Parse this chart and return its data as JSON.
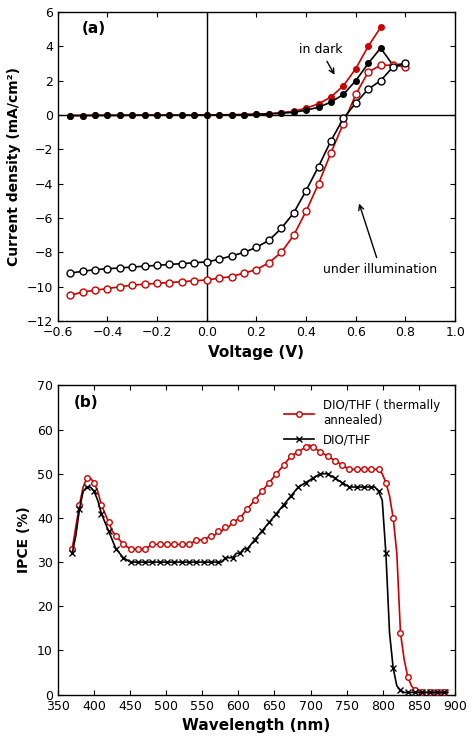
{
  "panel_a": {
    "xlim": [
      -0.6,
      1.0
    ],
    "ylim": [
      -12,
      6
    ],
    "xlabel": "Voltage (V)",
    "ylabel": "Current density (mA/cm²)",
    "label": "(a)",
    "xticks": [
      -0.6,
      -0.4,
      -0.2,
      0.0,
      0.2,
      0.4,
      0.6,
      0.8,
      1.0
    ],
    "yticks": [
      -12,
      -10,
      -8,
      -6,
      -4,
      -2,
      0,
      2,
      4,
      6
    ],
    "dark_red_x": [
      -0.55,
      -0.5,
      -0.45,
      -0.4,
      -0.35,
      -0.3,
      -0.25,
      -0.2,
      -0.15,
      -0.1,
      -0.05,
      0.0,
      0.05,
      0.1,
      0.15,
      0.2,
      0.25,
      0.3,
      0.35,
      0.4,
      0.45,
      0.5,
      0.55,
      0.6,
      0.65,
      0.7
    ],
    "dark_red_y": [
      -0.03,
      -0.03,
      -0.02,
      -0.02,
      -0.02,
      -0.01,
      -0.01,
      -0.01,
      -0.01,
      -0.01,
      -0.01,
      0.0,
      0.01,
      0.02,
      0.03,
      0.05,
      0.08,
      0.14,
      0.22,
      0.4,
      0.65,
      1.05,
      1.7,
      2.7,
      4.0,
      5.1
    ],
    "dark_black_x": [
      -0.55,
      -0.5,
      -0.45,
      -0.4,
      -0.35,
      -0.3,
      -0.25,
      -0.2,
      -0.15,
      -0.1,
      -0.05,
      0.0,
      0.05,
      0.1,
      0.15,
      0.2,
      0.25,
      0.3,
      0.35,
      0.4,
      0.45,
      0.5,
      0.55,
      0.6,
      0.65,
      0.7,
      0.75,
      0.8
    ],
    "dark_black_y": [
      -0.03,
      -0.03,
      -0.02,
      -0.02,
      -0.02,
      -0.01,
      -0.01,
      -0.01,
      -0.01,
      -0.01,
      -0.01,
      0.0,
      0.01,
      0.01,
      0.02,
      0.04,
      0.06,
      0.1,
      0.16,
      0.28,
      0.45,
      0.75,
      1.2,
      2.0,
      3.0,
      3.9,
      2.9,
      3.0
    ],
    "illum_red_x": [
      -0.55,
      -0.5,
      -0.45,
      -0.4,
      -0.35,
      -0.3,
      -0.25,
      -0.2,
      -0.15,
      -0.1,
      -0.05,
      0.0,
      0.05,
      0.1,
      0.15,
      0.2,
      0.25,
      0.3,
      0.35,
      0.4,
      0.45,
      0.5,
      0.55,
      0.6,
      0.65,
      0.7,
      0.75,
      0.8
    ],
    "illum_red_y": [
      -10.5,
      -10.3,
      -10.2,
      -10.1,
      -10.0,
      -9.9,
      -9.85,
      -9.8,
      -9.75,
      -9.7,
      -9.65,
      -9.6,
      -9.5,
      -9.4,
      -9.2,
      -9.0,
      -8.6,
      -8.0,
      -7.0,
      -5.6,
      -4.0,
      -2.2,
      -0.5,
      1.2,
      2.5,
      2.9,
      2.9,
      2.8
    ],
    "illum_black_x": [
      -0.55,
      -0.5,
      -0.45,
      -0.4,
      -0.35,
      -0.3,
      -0.25,
      -0.2,
      -0.15,
      -0.1,
      -0.05,
      0.0,
      0.05,
      0.1,
      0.15,
      0.2,
      0.25,
      0.3,
      0.35,
      0.4,
      0.45,
      0.5,
      0.55,
      0.6,
      0.65,
      0.7,
      0.75,
      0.8
    ],
    "illum_black_y": [
      -9.2,
      -9.1,
      -9.0,
      -8.95,
      -8.9,
      -8.85,
      -8.8,
      -8.75,
      -8.7,
      -8.65,
      -8.6,
      -8.55,
      -8.4,
      -8.2,
      -8.0,
      -7.7,
      -7.3,
      -6.6,
      -5.7,
      -4.4,
      -3.0,
      -1.5,
      -0.2,
      0.7,
      1.5,
      2.0,
      2.8,
      3.0
    ],
    "annotation_dark": "in dark",
    "annotation_illum": "under illumination",
    "dark_red_color": "#cc0000",
    "dark_black_color": "#000000",
    "illum_red_color": "#cc0000",
    "illum_black_color": "#000000"
  },
  "panel_b": {
    "xlim": [
      350,
      900
    ],
    "ylim": [
      0,
      70
    ],
    "xlabel": "Wavelength (nm)",
    "ylabel": "IPCE (%)",
    "label": "(b)",
    "xticks": [
      350,
      400,
      450,
      500,
      550,
      600,
      650,
      700,
      750,
      800,
      850,
      900
    ],
    "yticks": [
      0,
      10,
      20,
      30,
      40,
      50,
      60,
      70
    ],
    "legend_thermally": "DIO/THF ( thermally\nannealed)",
    "legend_diothf": "DIO/THF",
    "red_y": [
      33,
      38,
      43,
      47,
      49,
      49,
      48,
      46,
      43,
      41,
      39,
      37,
      36,
      35,
      34,
      33.5,
      33,
      33,
      33,
      33,
      33,
      33.5,
      34,
      34,
      34,
      34,
      34,
      34,
      34,
      34,
      34,
      34,
      34,
      34.5,
      35,
      35,
      35,
      35.5,
      36,
      36,
      37,
      37,
      38,
      38,
      39,
      39.5,
      40,
      41,
      42,
      43,
      44,
      45,
      46,
      47,
      48,
      49,
      50,
      51,
      52,
      53,
      54,
      54.5,
      55,
      55.5,
      56,
      56.5,
      56,
      55.5,
      55,
      54.5,
      54,
      53.5,
      53,
      52.5,
      52,
      51.5,
      51,
      51,
      51,
      51,
      51,
      51,
      51,
      51,
      51,
      50,
      48,
      45,
      40,
      32,
      14,
      8,
      4,
      2,
      1,
      0.5,
      0.5,
      0.5,
      0.5,
      0.5,
      0.5,
      0.5,
      0.5,
      1.0
    ],
    "black_y": [
      32,
      36,
      42,
      46,
      47,
      47,
      46,
      44,
      41,
      39,
      37,
      35,
      33,
      32,
      31,
      30.5,
      30,
      30,
      30,
      30,
      30,
      30,
      30,
      30,
      30,
      30,
      30,
      30,
      30,
      30,
      30,
      30,
      30,
      30,
      30,
      30,
      30,
      30,
      30,
      30,
      30,
      30,
      31,
      31,
      31,
      32,
      32,
      33,
      33,
      34,
      35,
      36,
      37,
      38,
      39,
      40,
      41,
      42,
      43,
      44,
      45,
      46,
      47,
      47.5,
      48,
      48.5,
      49,
      49.5,
      50,
      50,
      50,
      49.5,
      49,
      48.5,
      48,
      47.5,
      47,
      47,
      47,
      47,
      47,
      47,
      47,
      47,
      46,
      44,
      32,
      14,
      6,
      2,
      1,
      0.5,
      0.5,
      0.5,
      0.5,
      0.5,
      0.5,
      0.5,
      0.5,
      0.5,
      0.5,
      0.5,
      0.5,
      0.5
    ],
    "red_color": "#cc0000",
    "black_color": "#000000"
  }
}
